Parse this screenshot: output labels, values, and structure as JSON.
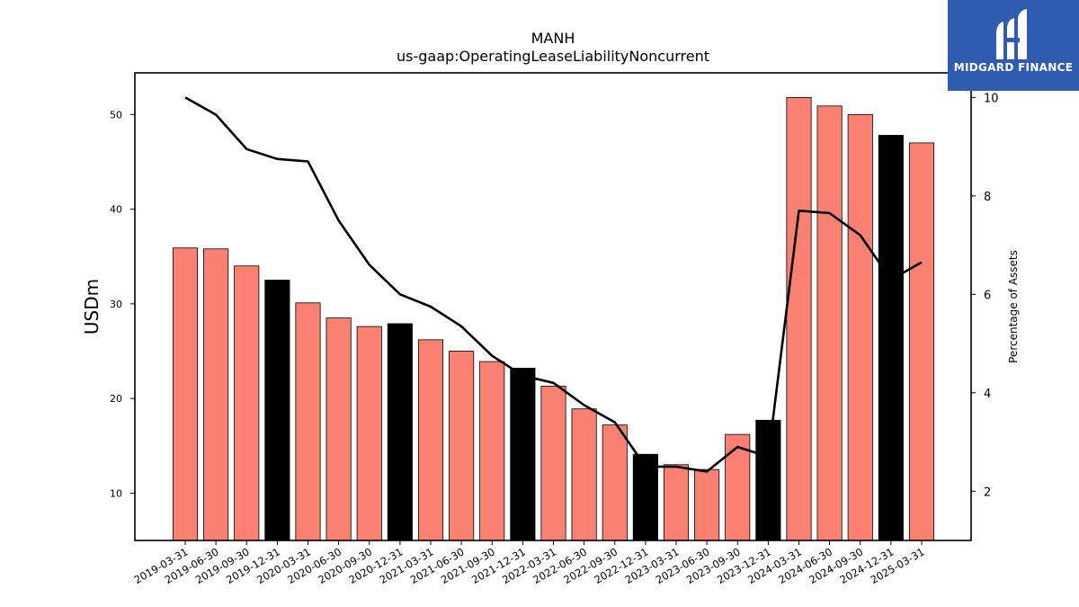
{
  "chart_data": {
    "type": "bar",
    "title": "MANH",
    "subtitle": "us-gaap:OperatingLeaseLiabilityNoncurrent",
    "ylabel": "USDm",
    "y2label": "Percentage of Assets",
    "ylim": [
      5,
      54.4
    ],
    "y2lim": [
      1.0,
      10.5
    ],
    "yticks": [
      10,
      20,
      30,
      40,
      50
    ],
    "y2ticks": [
      2,
      4,
      6,
      8,
      10
    ],
    "categories": [
      "2019-03-31",
      "2019-06-30",
      "2019-09-30",
      "2019-12-31",
      "2020-03-31",
      "2020-06-30",
      "2020-09-30",
      "2020-12-31",
      "2021-03-31",
      "2021-06-30",
      "2021-09-30",
      "2021-12-31",
      "2022-03-31",
      "2022-06-30",
      "2022-09-30",
      "2022-12-31",
      "2023-03-31",
      "2023-06-30",
      "2023-09-30",
      "2023-12-31",
      "2024-03-31",
      "2024-06-30",
      "2024-09-30",
      "2024-12-31",
      "2025-03-31"
    ],
    "series": [
      {
        "values": [
          35.9,
          35.8,
          34.0,
          32.5,
          30.1,
          28.5,
          27.6,
          27.9,
          26.2,
          25.0,
          23.9,
          23.2,
          21.3,
          18.9,
          17.2,
          14.1,
          13.0,
          12.5,
          16.2,
          17.7,
          51.8,
          50.9,
          50.0,
          47.8,
          47.0
        ]
      },
      {
        "axis": "right",
        "values": [
          10.0,
          9.65,
          8.95,
          8.75,
          8.7,
          7.5,
          6.6,
          6.0,
          5.75,
          5.35,
          4.75,
          4.35,
          4.2,
          3.75,
          3.4,
          2.5,
          2.5,
          2.4,
          2.9,
          2.7,
          7.7,
          7.65,
          7.2,
          6.3,
          6.65
        ]
      }
    ],
    "colors": {
      "bar": "#fa8072",
      "bar_year_end": "#000000",
      "line": "#000000"
    }
  },
  "logo": {
    "text": "MIDGARD FINANCE"
  }
}
